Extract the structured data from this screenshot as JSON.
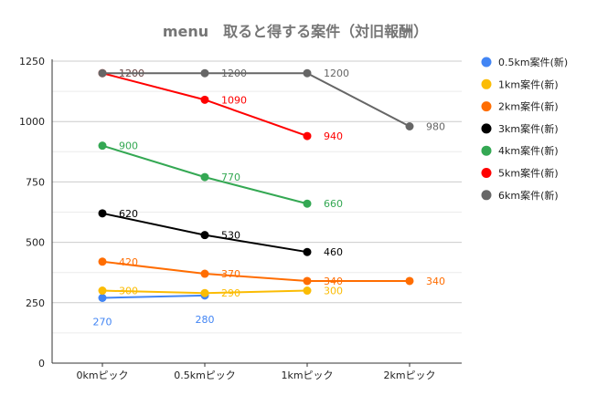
{
  "chart_data": {
    "type": "line",
    "title": "menu　取ると得する案件（対旧報酬）",
    "xlabel": "",
    "ylabel": "",
    "categories": [
      "0kmピック",
      "0.5kmピック",
      "1kmピック",
      "2kmピック"
    ],
    "ylim": [
      0,
      1250
    ],
    "yticks": [
      0,
      250,
      500,
      750,
      1000,
      1250
    ],
    "grid": true,
    "legend_position": "right",
    "series": [
      {
        "name": "0.5km案件(新)",
        "color": "#4285f4",
        "values": [
          270,
          280,
          null,
          null
        ],
        "label_position": "below"
      },
      {
        "name": "1km案件(新)",
        "color": "#fbbc04",
        "values": [
          300,
          290,
          300,
          null
        ],
        "label_position": "right"
      },
      {
        "name": "2km案件(新)",
        "color": "#ff6d01",
        "values": [
          420,
          370,
          340,
          340
        ],
        "label_position": "right"
      },
      {
        "name": "3km案件(新)",
        "color": "#000000",
        "values": [
          620,
          530,
          460,
          null
        ],
        "label_position": "right"
      },
      {
        "name": "4km案件(新)",
        "color": "#34a853",
        "values": [
          900,
          770,
          660,
          null
        ],
        "label_position": "right"
      },
      {
        "name": "5km案件(新)",
        "color": "#ff0000",
        "values": [
          1200,
          1090,
          940,
          null
        ],
        "label_position": "right"
      },
      {
        "name": "6km案件(新)",
        "color": "#666666",
        "values": [
          1200,
          1200,
          1200,
          980
        ],
        "label_position": "right"
      }
    ]
  }
}
